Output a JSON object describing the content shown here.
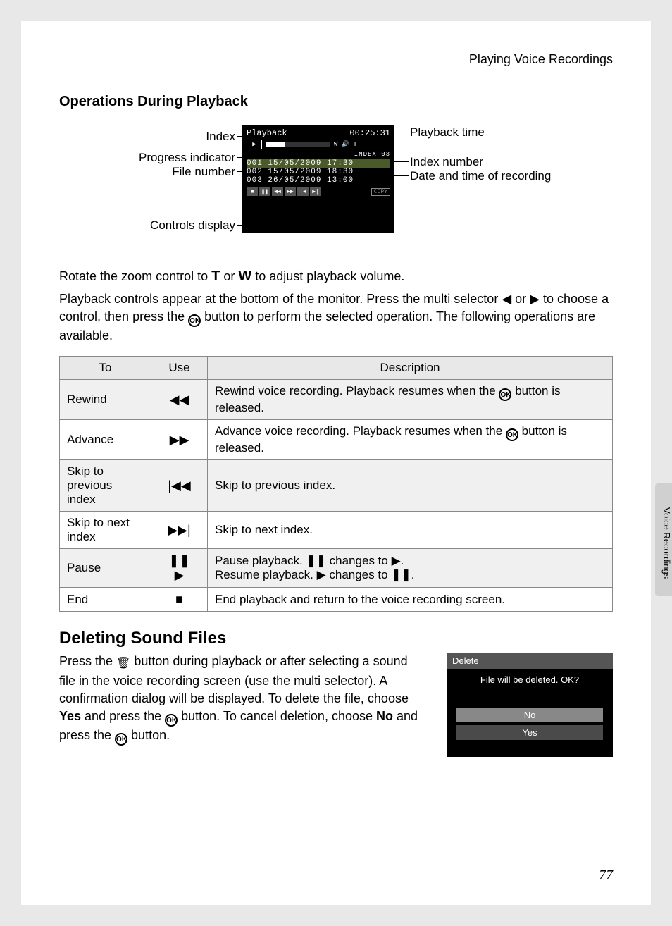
{
  "header": "Playing Voice Recordings",
  "sub_heading": "Operations During Playback",
  "lcd": {
    "mode": "Playback",
    "time": "00:25:31",
    "index_label": "INDEX",
    "index_num": "03",
    "files": [
      {
        "num": "001",
        "date": "15/05/2009",
        "time": "17:30",
        "sel": true
      },
      {
        "num": "002",
        "date": "15/05/2009",
        "time": "18:30",
        "sel": false
      },
      {
        "num": "003",
        "date": "26/05/2009",
        "time": "13:00",
        "sel": false
      }
    ],
    "copy": "COPY"
  },
  "callouts": {
    "index": "Index",
    "progress": "Progress indicator",
    "filenum": "File number",
    "controls": "Controls display",
    "ptime": "Playback time",
    "indexnum": "Index number",
    "datetime": "Date and time of recording"
  },
  "para1_a": "Rotate the zoom control to ",
  "para1_b": " or ",
  "para1_c": " to adjust playback volume.",
  "para2_a": "Playback controls appear at the bottom of the monitor. Press the multi selector ",
  "para2_b": " or ",
  "para2_c": " to choose a control, then press the ",
  "para2_d": " button to perform the selected operation. The following operations are available.",
  "table": {
    "headers": [
      "To",
      "Use",
      "Description"
    ],
    "rows": [
      {
        "to": "Rewind",
        "use": "◀◀",
        "desc_a": "Rewind voice recording. Playback resumes when the ",
        "desc_b": " button is released."
      },
      {
        "to": "Advance",
        "use": "▶▶",
        "desc_a": "Advance voice recording. Playback resumes when the ",
        "desc_b": " button is released."
      },
      {
        "to": "Skip to previous index",
        "use": "|◀◀",
        "desc_a": "Skip to previous index.",
        "desc_b": ""
      },
      {
        "to": "Skip to next index",
        "use": "▶▶|",
        "desc_a": "Skip to next index.",
        "desc_b": ""
      },
      {
        "to": "Pause",
        "use": "❚❚\n▶",
        "desc_a": "Pause playback. ❚❚ changes to ▶.\nResume playback. ▶ changes to ❚❚.",
        "desc_b": ""
      },
      {
        "to": "End",
        "use": "■",
        "desc_a": "End playback and return to the voice recording screen.",
        "desc_b": ""
      }
    ]
  },
  "h2": "Deleting Sound Files",
  "del_para_a": "Press the ",
  "del_para_b": " button during playback or after selecting a sound file in the voice recording screen (use the multi selector). A confirmation dialog will be displayed. To delete the file, choose ",
  "del_para_c": " and press the ",
  "del_para_d": " button. To cancel deletion, choose ",
  "del_para_e": " and press the ",
  "del_para_f": " button.",
  "yes": "Yes",
  "no": "No",
  "dialog": {
    "title": "Delete",
    "msg": "File will be deleted. OK?",
    "no": "No",
    "yes": "Yes"
  },
  "sidebar": "Voice Recordings",
  "page_num": "77",
  "keys": {
    "T": "T",
    "W": "W",
    "ok": "OK",
    "left": "◀",
    "right": "▶",
    "trash": "🗑"
  }
}
